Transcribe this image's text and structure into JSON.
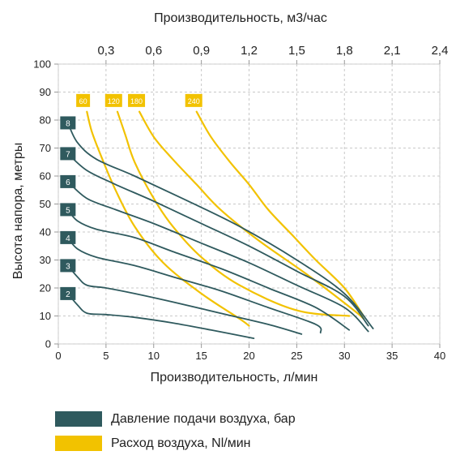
{
  "chart_data": {
    "type": "line",
    "title": "Производительность, м3/час",
    "xlabel": "Производительность, л/мин",
    "ylabel": "Высота напора, метры",
    "xlim": [
      0,
      40
    ],
    "ylim": [
      0,
      100
    ],
    "x_ticks": [
      0,
      5,
      10,
      15,
      20,
      25,
      30,
      35,
      40
    ],
    "y_ticks": [
      0,
      10,
      20,
      30,
      40,
      50,
      60,
      70,
      80,
      90,
      100
    ],
    "top_axis": {
      "unit_factor": 0.06,
      "labels": [
        "0,3",
        "0,6",
        "0,9",
        "1,2",
        "1,5",
        "1,8",
        "2,1",
        "2,4"
      ],
      "values": [
        0.3,
        0.6,
        0.9,
        1.2,
        1.5,
        1.8,
        2.1,
        2.4
      ]
    },
    "grid": true,
    "legend": [
      {
        "label": "Давление подачи воздуха, бар",
        "color": "#2f5a5e"
      },
      {
        "label": "Расход воздуха, Nl/мин",
        "color": "#f2c200"
      }
    ],
    "pressure_series": [
      {
        "label": "2",
        "label_y": 18,
        "points": [
          [
            1,
            18
          ],
          [
            2,
            14
          ],
          [
            3,
            11
          ],
          [
            5,
            10.5
          ],
          [
            8,
            9.5
          ],
          [
            12,
            7.5
          ],
          [
            16,
            5
          ],
          [
            20.5,
            2
          ]
        ]
      },
      {
        "label": "3",
        "label_y": 28,
        "points": [
          [
            1,
            28
          ],
          [
            2,
            24
          ],
          [
            3,
            21
          ],
          [
            5,
            20
          ],
          [
            8,
            18
          ],
          [
            12,
            15
          ],
          [
            17,
            11
          ],
          [
            22,
            7
          ],
          [
            25.5,
            3.5
          ]
        ]
      },
      {
        "label": "4",
        "label_y": 38,
        "points": [
          [
            1,
            38
          ],
          [
            2,
            34
          ],
          [
            4,
            31
          ],
          [
            8,
            28
          ],
          [
            12,
            24
          ],
          [
            17,
            19
          ],
          [
            22,
            13
          ],
          [
            27,
            7
          ],
          [
            27.5,
            4
          ]
        ]
      },
      {
        "label": "5",
        "label_y": 48,
        "points": [
          [
            1,
            48
          ],
          [
            2,
            44
          ],
          [
            4,
            41
          ],
          [
            8,
            38
          ],
          [
            12,
            33
          ],
          [
            17,
            27
          ],
          [
            22,
            20
          ],
          [
            27,
            13
          ],
          [
            30.5,
            5
          ]
        ]
      },
      {
        "label": "6",
        "label_y": 58,
        "points": [
          [
            1,
            58
          ],
          [
            3,
            52
          ],
          [
            6,
            48
          ],
          [
            10,
            43
          ],
          [
            15,
            36
          ],
          [
            20,
            29
          ],
          [
            25,
            21
          ],
          [
            30,
            13
          ],
          [
            32.5,
            4.5
          ]
        ]
      },
      {
        "label": "7",
        "label_y": 68,
        "points": [
          [
            1,
            68
          ],
          [
            3,
            62
          ],
          [
            6,
            57
          ],
          [
            10,
            51
          ],
          [
            15,
            43
          ],
          [
            20,
            35
          ],
          [
            25,
            26
          ],
          [
            30,
            17
          ],
          [
            32.5,
            6.5
          ]
        ]
      },
      {
        "label": "8",
        "label_y": 79,
        "points": [
          [
            1,
            79
          ],
          [
            2,
            72
          ],
          [
            4,
            66
          ],
          [
            8,
            60
          ],
          [
            13,
            52
          ],
          [
            19,
            42
          ],
          [
            25,
            30
          ],
          [
            30,
            18
          ],
          [
            33,
            5.5
          ]
        ]
      }
    ],
    "airflow_series": [
      {
        "label": "60",
        "label_x": 2.6,
        "points": [
          [
            3,
            83
          ],
          [
            3.5,
            76
          ],
          [
            4.5,
            67
          ],
          [
            6,
            55
          ],
          [
            8,
            42
          ],
          [
            11,
            29
          ],
          [
            15,
            18
          ],
          [
            19,
            9
          ],
          [
            20,
            6.5
          ]
        ]
      },
      {
        "label": "120",
        "label_x": 5.8,
        "points": [
          [
            6.2,
            83
          ],
          [
            7,
            75
          ],
          [
            8,
            65
          ],
          [
            10,
            52
          ],
          [
            12,
            42
          ],
          [
            15,
            31
          ],
          [
            19,
            21
          ],
          [
            25,
            12
          ],
          [
            30.5,
            10
          ]
        ]
      },
      {
        "label": "180",
        "label_x": 8.2,
        "points": [
          [
            8.5,
            83
          ],
          [
            10,
            74
          ],
          [
            12,
            66
          ],
          [
            14.5,
            57
          ],
          [
            17,
            48
          ],
          [
            21,
            37
          ],
          [
            26,
            25
          ],
          [
            31,
            12
          ],
          [
            32,
            9
          ]
        ]
      },
      {
        "label": "240",
        "label_x": 14.2,
        "points": [
          [
            14.5,
            83
          ],
          [
            16,
            74
          ],
          [
            18,
            65
          ],
          [
            20,
            57
          ],
          [
            22,
            48
          ],
          [
            24.5,
            39
          ],
          [
            27,
            30
          ],
          [
            30,
            20
          ],
          [
            32,
            10
          ]
        ]
      }
    ]
  },
  "legend": {
    "pressure_label": "Давление подачи воздуха, бар",
    "airflow_label": "Расход воздуха, Nl/мин",
    "pressure_color": "#2f5a5e",
    "airflow_color": "#f2c200"
  }
}
